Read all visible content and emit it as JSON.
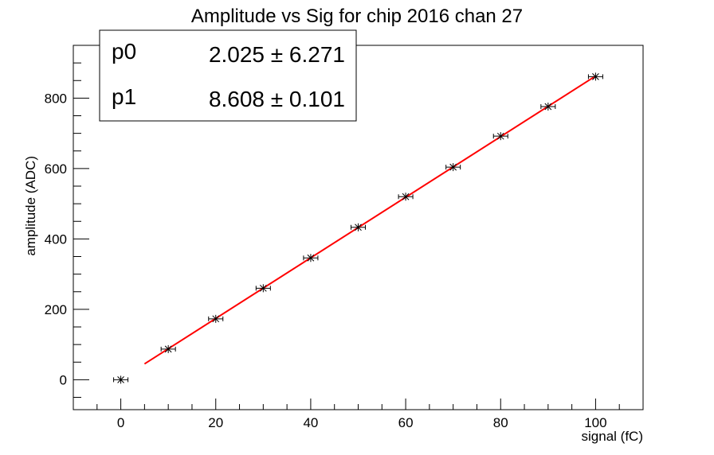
{
  "chart_data": {
    "type": "scatter",
    "title": "Amplitude vs Sig for chip 2016 chan 27",
    "xlabel": "signal (fC)",
    "ylabel": "amplitude (ADC)",
    "xlim": [
      -10,
      110
    ],
    "ylim": [
      -85,
      950
    ],
    "x_ticks": [
      0,
      20,
      40,
      60,
      80,
      100
    ],
    "y_ticks": [
      0,
      200,
      400,
      600,
      800
    ],
    "grid": false,
    "series": [
      {
        "marker": "asterisk",
        "color": "#000000",
        "x": [
          0,
          10,
          20,
          30,
          40,
          50,
          60,
          70,
          80,
          90,
          100
        ],
        "y": [
          0,
          87,
          173,
          260,
          346,
          433,
          520,
          604,
          692,
          776,
          861
        ]
      }
    ],
    "fit": {
      "color": "#ff0000",
      "x_range": [
        5,
        100
      ],
      "p0": 2.025,
      "p1": 8.608
    },
    "stats_box": {
      "placement": "top-left",
      "rows": [
        {
          "name": "p0",
          "value": "2.025 ± 6.271"
        },
        {
          "name": "p1",
          "value": "8.608 ± 0.101"
        }
      ]
    }
  }
}
